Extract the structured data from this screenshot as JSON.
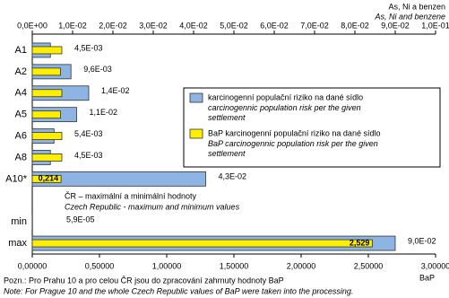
{
  "chart_data": {
    "type": "bar",
    "orientation": "horizontal",
    "x2_title": "As, Ni a benzen",
    "x2_title_en": "As, Ni and benzene",
    "x_title": "BaP",
    "categories": [
      "A1",
      "A2",
      "A4",
      "A5",
      "A6",
      "A8",
      "A10*",
      null,
      "min",
      "max"
    ],
    "series": [
      {
        "name": "karcinogenní populační riziko na dané sídlo",
        "name_en": "carcinogennic population risk per the given settlement",
        "color": "#8db4e2",
        "axis": "x2",
        "values": [
          0.0045,
          0.0096,
          0.014,
          0.011,
          0.0054,
          0.0045,
          0.043,
          null,
          5.9e-05,
          0.09
        ],
        "value_labels": [
          "4,5E-03",
          "9,6E-03",
          "1,4E-02",
          "1,1E-02",
          "5,4E-03",
          "4,5E-03",
          "4,3E-02",
          null,
          "5,9E-05",
          "9,0E-02"
        ]
      },
      {
        "name": "BaP karcinogenní populační riziko na dané sídlo",
        "name_en": "BaP carcinogennic population risk per the given settlement",
        "color": "#ffee00",
        "axis": "x",
        "values": [
          0.22,
          0.21,
          0.22,
          0.21,
          0.22,
          0.22,
          0.214,
          null,
          null,
          2.529
        ],
        "value_labels": [
          null,
          null,
          null,
          null,
          null,
          null,
          "0,214",
          null,
          null,
          "2,529"
        ]
      }
    ],
    "x2lim": [
      0,
      0.1
    ],
    "x2ticks": [
      {
        "value": 0,
        "label": "0,0E+00"
      },
      {
        "value": 0.01,
        "label": "1,0E-02"
      },
      {
        "value": 0.02,
        "label": "2,0E-02"
      },
      {
        "value": 0.03,
        "label": "3,0E-02"
      },
      {
        "value": 0.04,
        "label": "4,0E-02"
      },
      {
        "value": 0.05,
        "label": "5,0E-02"
      },
      {
        "value": 0.06,
        "label": "6,0E-02"
      },
      {
        "value": 0.07,
        "label": "7,0E-02"
      },
      {
        "value": 0.08,
        "label": "8,0E-02"
      },
      {
        "value": 0.09,
        "label": "9,0E-02"
      },
      {
        "value": 0.1,
        "label": "1,0E-01"
      }
    ],
    "xlim": [
      0,
      3
    ],
    "xticks": [
      {
        "value": 0,
        "label": "0,00000"
      },
      {
        "value": 0.5,
        "label": "0,50000"
      },
      {
        "value": 1,
        "label": "1,00000"
      },
      {
        "value": 1.5,
        "label": "1,50000"
      },
      {
        "value": 2,
        "label": "2,00000"
      },
      {
        "value": 2.5,
        "label": "2,50000"
      },
      {
        "value": 3,
        "label": "3,00000"
      }
    ],
    "annotation": "ČR – maximální a minimální hodnoty",
    "annotation_en": "Czech Republic - maximum and minimum values",
    "footnote": "Pozn.: Pro Prahu 10 a pro celou ČR jsou do zpracování zahrnuty hodnoty BaP",
    "footnote_en": "Note: For Prague 10 and the whole Czech Republic values of BaP were taken into the processing."
  }
}
